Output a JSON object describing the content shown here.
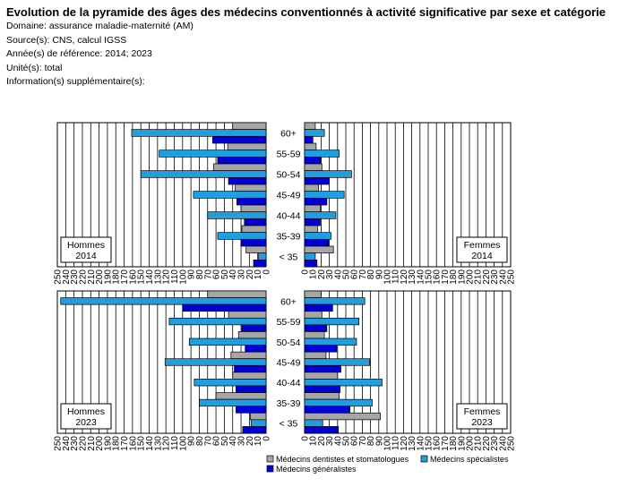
{
  "title": "Evolution de la pyramide des âges des médecins conventionnés à activité significative par sexe et catégorie",
  "meta": {
    "domain": "Domaine: assurance maladie-maternité (AM)",
    "source": "Source(s): CNS, calcul IGSS",
    "years": "Année(s) de référence: 2014; 2023",
    "unit": "Unité(s): total",
    "info": "Information(s) supplémentaire(s):"
  },
  "colors": {
    "dentistes": "#a6a6a6",
    "specialistes": "#1f9ee0",
    "generalistes": "#0000d6"
  },
  "chart_data": {
    "type": "bar",
    "orientation": "horizontal-pyramid",
    "categories": [
      "60+",
      "55-59",
      "50-54",
      "45-49",
      "40-44",
      "35-39",
      "< 35"
    ],
    "xlim": [
      0,
      250
    ],
    "ticks": [
      250,
      240,
      230,
      220,
      210,
      200,
      190,
      180,
      170,
      160,
      150,
      140,
      130,
      120,
      110,
      100,
      90,
      80,
      70,
      60,
      50,
      40,
      30,
      20,
      10,
      0
    ],
    "series_names": [
      "Médecins dentistes et stomatologues",
      "Médecins spécialistes",
      "Médecins généralistes"
    ],
    "legend": {
      "dentistes": "Médecins dentistes et stomatologues",
      "specialistes": "Médecins spécialistes",
      "generalistes": "Médecins généralistes"
    },
    "panels": [
      {
        "label": "Hommes",
        "year": "2014",
        "side": "left",
        "values": {
          "dentistes": [
            40,
            46,
            63,
            37,
            30,
            29,
            24
          ],
          "specialistes": [
            161,
            128,
            150,
            87,
            70,
            58,
            9
          ],
          "generalistes": [
            64,
            58,
            45,
            35,
            26,
            30,
            15
          ]
        }
      },
      {
        "label": "Femmes",
        "year": "2014",
        "side": "right",
        "values": {
          "dentistes": [
            13,
            14,
            21,
            17,
            19,
            16,
            35
          ],
          "specialistes": [
            24,
            42,
            57,
            48,
            38,
            32,
            13
          ],
          "generalistes": [
            10,
            20,
            30,
            27,
            19,
            29,
            15
          ]
        }
      },
      {
        "label": "Hommes",
        "year": "2023",
        "side": "left",
        "values": {
          "dentistes": [
            70,
            45,
            33,
            42,
            40,
            60,
            19
          ],
          "specialistes": [
            246,
            116,
            92,
            121,
            86,
            80,
            18
          ],
          "generalistes": [
            100,
            29,
            25,
            38,
            36,
            36,
            28
          ]
        }
      },
      {
        "label": "Femmes",
        "year": "2023",
        "side": "right",
        "values": {
          "dentistes": [
            20,
            21,
            24,
            26,
            40,
            42,
            92
          ],
          "specialistes": [
            73,
            66,
            63,
            79,
            94,
            82,
            22
          ],
          "generalistes": [
            34,
            27,
            39,
            44,
            43,
            55,
            41
          ]
        }
      }
    ]
  }
}
